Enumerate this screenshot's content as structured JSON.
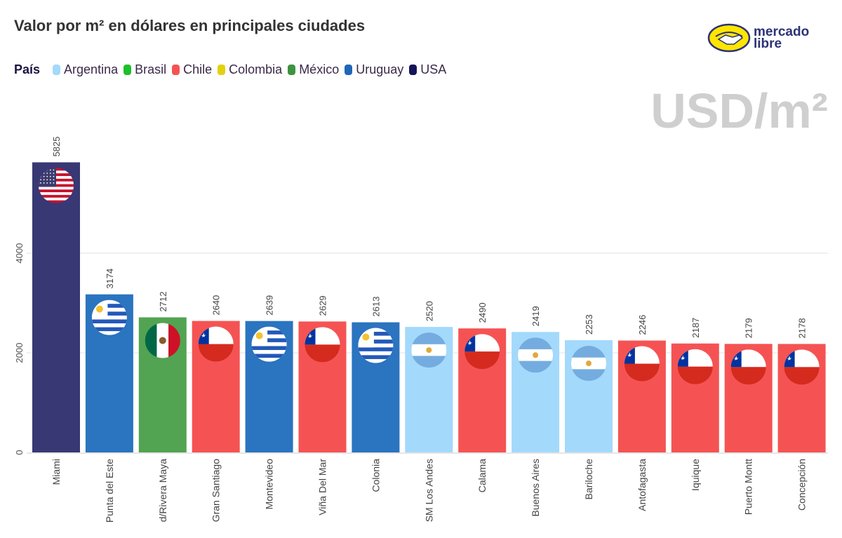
{
  "title": "Valor por m² en dólares en principales ciudades",
  "watermark": "USD/m²",
  "logo": {
    "line1": "mercado",
    "line2": "libre"
  },
  "legend": {
    "title": "País",
    "items": [
      {
        "label": "Argentina",
        "color": "#a3d9fb"
      },
      {
        "label": "Brasil",
        "color": "#1dbf2a"
      },
      {
        "label": "Chile",
        "color": "#f55353"
      },
      {
        "label": "Colombia",
        "color": "#e3d10e"
      },
      {
        "label": "México",
        "color": "#3d9340"
      },
      {
        "label": "Uruguay",
        "color": "#1e66b8"
      },
      {
        "label": "USA",
        "color": "#14145a"
      }
    ]
  },
  "chart_data": {
    "type": "bar",
    "title": "Valor por m² en dólares en principales ciudades",
    "categories": [
      "Miami",
      "Punta del Este",
      "d/Rivera Maya",
      "Gran Santiago",
      "Montevideo",
      "Viña Del Mar",
      "Colonia",
      "SM Los Andes",
      "Calama",
      "Buenos Aires",
      "Bariloche",
      "Antofagasta",
      "Iquique",
      "Puerto Montt",
      "Concepción"
    ],
    "values": [
      5825,
      3174,
      2712,
      2640,
      2639,
      2629,
      2613,
      2520,
      2490,
      2419,
      2253,
      2246,
      2187,
      2179,
      2178
    ],
    "country": [
      "USA",
      "Uruguay",
      "México",
      "Chile",
      "Uruguay",
      "Chile",
      "Uruguay",
      "Argentina",
      "Chile",
      "Argentina",
      "Argentina",
      "Chile",
      "Chile",
      "Chile",
      "Chile"
    ],
    "bar_colors": {
      "USA": "#383874",
      "Uruguay": "#2a74c0",
      "México": "#52a352",
      "Chile": "#f55353",
      "Argentina": "#a3d9fb"
    },
    "yticks": [
      0,
      2000,
      4000
    ],
    "ylim": [
      0,
      6000
    ],
    "grid": true,
    "legend_position": "top-left"
  }
}
